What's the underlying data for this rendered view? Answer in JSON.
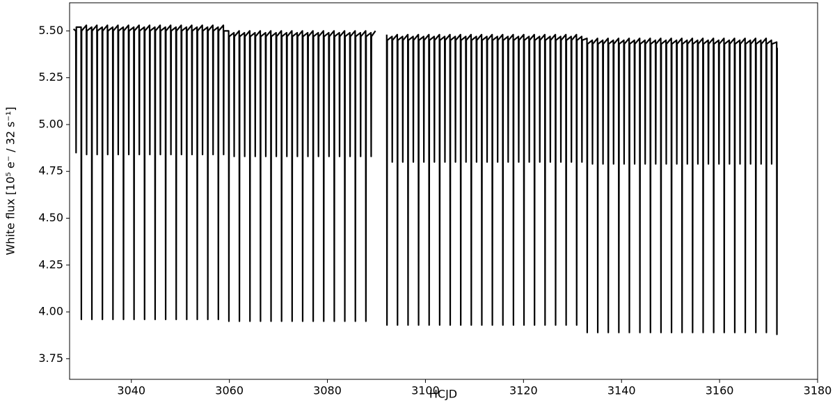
{
  "chart_data": {
    "type": "line",
    "x_label": "HCJD",
    "y_label": "White flux [10⁵ e⁻ / 32 s⁻¹]",
    "color": "#000000",
    "grid": false,
    "xlim": [
      3027.4,
      3180
    ],
    "ylim": [
      3.64,
      5.65
    ],
    "xticks": [
      3040,
      3060,
      3080,
      3100,
      3120,
      3140,
      3160,
      3180
    ],
    "yticks": [
      3.75,
      {
        "value": 4,
        "label": "4.00"
      },
      4.25,
      {
        "value": 4.5,
        "label": "4.50"
      },
      4.75,
      {
        "value": 5,
        "label": "5.00"
      },
      5.25,
      {
        "value": 5.5,
        "label": "5.50"
      }
    ],
    "x": [
      3028.2,
      3028.675,
      3028.725,
      3028.775,
      3029.75,
      3029.8,
      3029.85,
      3030.825,
      3030.875,
      3030.925,
      3031.9,
      3031.95,
      3032,
      3032.975,
      3033.025,
      3033.075,
      3034.05,
      3034.1,
      3034.15,
      3035.125,
      3035.175,
      3035.225,
      3036.2,
      3036.25,
      3036.3,
      3037.275,
      3037.325,
      3037.375,
      3038.35,
      3038.4,
      3038.45,
      3039.425,
      3039.475,
      3039.525,
      3040.5,
      3040.55,
      3040.6,
      3041.575,
      3041.625,
      3041.675,
      3042.65,
      3042.7,
      3042.75,
      3043.725,
      3043.775,
      3043.825,
      3044.8,
      3044.85,
      3044.9,
      3045.875,
      3045.925,
      3045.975,
      3046.95,
      3047,
      3047.05,
      3048.025,
      3048.075,
      3048.125,
      3049.1,
      3049.15,
      3049.2,
      3050.175,
      3050.225,
      3050.275,
      3051.25,
      3051.3,
      3051.35,
      3052.325,
      3052.375,
      3052.425,
      3053.4,
      3053.45,
      3053.5,
      3054.475,
      3054.525,
      3054.575,
      3055.55,
      3055.6,
      3055.65,
      3056.625,
      3056.675,
      3056.725,
      3057.7,
      3057.75,
      3057.8,
      3058.775,
      3058.825,
      3058.875,
      3059.85,
      3059.9,
      3059.95,
      3060.925,
      3060.975,
      3061.025,
      3062,
      3062.05,
      3062.1,
      3063.075,
      3063.125,
      3063.175,
      3064.15,
      3064.2,
      3064.25,
      3065.225,
      3065.275,
      3065.325,
      3066.3,
      3066.35,
      3066.4,
      3067.375,
      3067.425,
      3067.475,
      3068.45,
      3068.5,
      3068.55,
      3069.525,
      3069.575,
      3069.625,
      3070.6,
      3070.65,
      3070.7,
      3071.675,
      3071.725,
      3071.775,
      3072.75,
      3072.8,
      3072.85,
      3073.825,
      3073.875,
      3073.925,
      3074.9,
      3074.95,
      3075,
      3075.975,
      3076.025,
      3076.075,
      3077.05,
      3077.1,
      3077.15,
      3078.125,
      3078.175,
      3078.225,
      3079.2,
      3079.25,
      3079.3,
      3080.275,
      3080.325,
      3080.375,
      3081.35,
      3081.4,
      3081.45,
      3082.425,
      3082.475,
      3082.525,
      3083.5,
      3083.55,
      3083.6,
      3084.575,
      3084.625,
      3084.675,
      3085.65,
      3085.7,
      3085.75,
      3086.725,
      3086.775,
      3086.825,
      3087.8,
      3087.85,
      3087.9,
      3088.875,
      3088.925,
      3088.975,
      3089.8,
      3091,
      3092.1,
      3092.15,
      3092.2,
      3093.175,
      3093.225,
      3093.275,
      3094.25,
      3094.3,
      3094.35,
      3095.325,
      3095.375,
      3095.425,
      3096.4,
      3096.45,
      3096.5,
      3097.475,
      3097.525,
      3097.575,
      3098.55,
      3098.6,
      3098.65,
      3099.625,
      3099.675,
      3099.725,
      3100.7,
      3100.75,
      3100.8,
      3101.775,
      3101.825,
      3101.875,
      3102.85,
      3102.9,
      3102.95,
      3103.925,
      3103.975,
      3104.025,
      3105,
      3105.05,
      3105.1,
      3106.075,
      3106.125,
      3106.175,
      3107.15,
      3107.2,
      3107.25,
      3108.225,
      3108.275,
      3108.325,
      3109.3,
      3109.35,
      3109.4,
      3110.375,
      3110.425,
      3110.475,
      3111.45,
      3111.5,
      3111.55,
      3112.525,
      3112.575,
      3112.625,
      3113.6,
      3113.65,
      3113.7,
      3114.675,
      3114.725,
      3114.775,
      3115.75,
      3115.8,
      3115.85,
      3116.825,
      3116.875,
      3116.925,
      3117.9,
      3117.95,
      3118,
      3118.975,
      3119.025,
      3119.075,
      3120.05,
      3120.1,
      3120.15,
      3121.125,
      3121.175,
      3121.225,
      3122.2,
      3122.25,
      3122.3,
      3123.275,
      3123.325,
      3123.375,
      3124.35,
      3124.4,
      3124.45,
      3125.425,
      3125.475,
      3125.525,
      3126.5,
      3126.55,
      3126.6,
      3127.575,
      3127.625,
      3127.675,
      3128.65,
      3128.7,
      3128.75,
      3129.725,
      3129.775,
      3129.825,
      3130.8,
      3130.85,
      3130.9,
      3131.875,
      3131.925,
      3131.975,
      3132.95,
      3133,
      3133.05,
      3134.025,
      3134.075,
      3134.125,
      3135.1,
      3135.15,
      3135.2,
      3136.175,
      3136.225,
      3136.275,
      3137.25,
      3137.3,
      3137.35,
      3138.325,
      3138.375,
      3138.425,
      3139.4,
      3139.45,
      3139.5,
      3140.475,
      3140.525,
      3140.575,
      3141.55,
      3141.6,
      3141.65,
      3142.625,
      3142.675,
      3142.725,
      3143.7,
      3143.75,
      3143.8,
      3144.775,
      3144.825,
      3144.875,
      3145.85,
      3145.9,
      3145.95,
      3146.925,
      3146.975,
      3147.025,
      3148,
      3148.05,
      3148.1,
      3149.075,
      3149.125,
      3149.175,
      3150.15,
      3150.2,
      3150.25,
      3151.225,
      3151.275,
      3151.325,
      3152.3,
      3152.35,
      3152.4,
      3153.375,
      3153.425,
      3153.475,
      3154.45,
      3154.5,
      3154.55,
      3155.525,
      3155.575,
      3155.625,
      3156.6,
      3156.65,
      3156.7,
      3157.675,
      3157.725,
      3157.775,
      3158.75,
      3158.8,
      3158.85,
      3159.825,
      3159.875,
      3159.925,
      3160.9,
      3160.95,
      3161,
      3161.975,
      3162.025,
      3162.075,
      3163.05,
      3163.1,
      3163.15,
      3164.125,
      3164.175,
      3164.225,
      3165.2,
      3165.25,
      3165.3,
      3166.275,
      3166.325,
      3166.375,
      3167.35,
      3167.4,
      3167.45,
      3168.425,
      3168.475,
      3168.525,
      3169.5,
      3169.55,
      3169.6,
      3170.575,
      3170.625,
      3170.675,
      3171.65,
      3171.7,
      3171.75
    ],
    "values": [
      5.51,
      5.5,
      4.85,
      5.52,
      5.52,
      3.96,
      5.5,
      5.53,
      4.84,
      5.5,
      5.52,
      3.96,
      5.5,
      5.53,
      4.84,
      5.5,
      5.52,
      3.96,
      5.5,
      5.53,
      4.84,
      5.5,
      5.52,
      3.96,
      5.5,
      5.53,
      4.84,
      5.5,
      5.52,
      3.96,
      5.5,
      5.53,
      4.84,
      5.5,
      5.52,
      3.96,
      5.5,
      5.53,
      4.84,
      5.5,
      5.52,
      3.96,
      5.5,
      5.53,
      4.84,
      5.5,
      5.52,
      3.96,
      5.5,
      5.53,
      4.84,
      5.5,
      5.52,
      3.96,
      5.5,
      5.53,
      4.84,
      5.5,
      5.52,
      3.96,
      5.5,
      5.53,
      4.84,
      5.5,
      5.52,
      3.96,
      5.5,
      5.53,
      4.84,
      5.5,
      5.52,
      3.96,
      5.5,
      5.53,
      4.84,
      5.5,
      5.52,
      3.96,
      5.5,
      5.53,
      4.84,
      5.5,
      5.52,
      3.96,
      5.5,
      5.53,
      4.84,
      5.5,
      5.5,
      3.95,
      5.47,
      5.49,
      4.83,
      5.47,
      5.5,
      3.95,
      5.47,
      5.49,
      4.83,
      5.47,
      5.5,
      3.95,
      5.47,
      5.49,
      4.83,
      5.47,
      5.5,
      3.95,
      5.47,
      5.49,
      4.83,
      5.47,
      5.5,
      3.95,
      5.47,
      5.49,
      4.83,
      5.47,
      5.5,
      3.95,
      5.47,
      5.49,
      4.83,
      5.47,
      5.5,
      3.95,
      5.47,
      5.49,
      4.83,
      5.47,
      5.5,
      3.95,
      5.47,
      5.49,
      4.83,
      5.47,
      5.5,
      3.95,
      5.47,
      5.49,
      4.83,
      5.47,
      5.5,
      3.95,
      5.47,
      5.49,
      4.83,
      5.47,
      5.5,
      3.95,
      5.47,
      5.49,
      4.83,
      5.47,
      5.5,
      3.95,
      5.47,
      5.49,
      4.83,
      5.47,
      5.5,
      3.95,
      5.47,
      5.49,
      4.83,
      5.47,
      5.5,
      3.95,
      5.47,
      5.49,
      4.83,
      5.47,
      5.5,
      null,
      5.48,
      3.93,
      5.45,
      5.47,
      4.8,
      5.45,
      5.48,
      3.93,
      5.45,
      5.47,
      4.8,
      5.45,
      5.48,
      3.93,
      5.45,
      5.47,
      4.8,
      5.45,
      5.48,
      3.93,
      5.45,
      5.47,
      4.8,
      5.45,
      5.48,
      3.93,
      5.45,
      5.47,
      4.8,
      5.45,
      5.48,
      3.93,
      5.45,
      5.47,
      4.8,
      5.45,
      5.48,
      3.93,
      5.45,
      5.47,
      4.8,
      5.45,
      5.48,
      3.93,
      5.45,
      5.47,
      4.8,
      5.45,
      5.48,
      3.93,
      5.45,
      5.47,
      4.8,
      5.45,
      5.48,
      3.93,
      5.45,
      5.47,
      4.8,
      5.45,
      5.48,
      3.93,
      5.45,
      5.47,
      4.8,
      5.45,
      5.48,
      3.93,
      5.45,
      5.47,
      4.8,
      5.45,
      5.48,
      3.93,
      5.45,
      5.47,
      4.8,
      5.45,
      5.48,
      3.93,
      5.45,
      5.47,
      4.8,
      5.45,
      5.48,
      3.93,
      5.45,
      5.47,
      4.8,
      5.45,
      5.48,
      3.93,
      5.45,
      5.47,
      4.8,
      5.45,
      5.48,
      3.93,
      5.45,
      5.47,
      4.8,
      5.45,
      5.48,
      3.93,
      5.45,
      5.47,
      4.8,
      5.45,
      5.48,
      3.93,
      5.45,
      5.47,
      4.8,
      5.45,
      5.46,
      3.89,
      5.43,
      5.45,
      4.79,
      5.43,
      5.46,
      3.89,
      5.43,
      5.45,
      4.79,
      5.43,
      5.46,
      3.89,
      5.43,
      5.45,
      4.79,
      5.43,
      5.46,
      3.89,
      5.43,
      5.45,
      4.79,
      5.43,
      5.46,
      3.89,
      5.43,
      5.45,
      4.79,
      5.43,
      5.46,
      3.89,
      5.43,
      5.45,
      4.79,
      5.43,
      5.46,
      3.89,
      5.43,
      5.45,
      4.79,
      5.43,
      5.46,
      3.89,
      5.43,
      5.45,
      4.79,
      5.43,
      5.46,
      3.89,
      5.43,
      5.45,
      4.79,
      5.43,
      5.46,
      3.89,
      5.43,
      5.45,
      4.79,
      5.43,
      5.46,
      3.89,
      5.43,
      5.45,
      4.79,
      5.43,
      5.46,
      3.89,
      5.43,
      5.45,
      4.79,
      5.43,
      5.46,
      3.89,
      5.43,
      5.45,
      4.79,
      5.43,
      5.46,
      3.89,
      5.43,
      5.45,
      4.79,
      5.43,
      5.46,
      3.89,
      5.43,
      5.45,
      4.79,
      5.43,
      5.46,
      3.89,
      5.43,
      5.45,
      4.79,
      5.43,
      5.46,
      3.89,
      5.43,
      5.45,
      4.79,
      5.43,
      5.46,
      3.89,
      5.43,
      5.45,
      4.79,
      5.43,
      5.44,
      3.88,
      5.41
    ]
  }
}
